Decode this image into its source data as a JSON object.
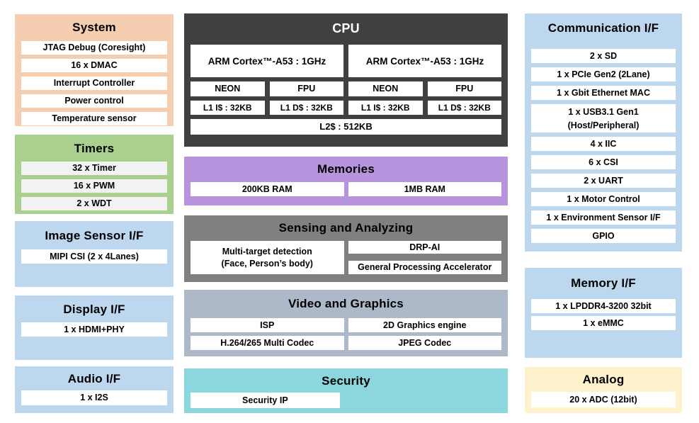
{
  "colors": {
    "system-bg": "#f5cdb0",
    "timers-bg": "#a9d08e",
    "panel-blue-bg": "#bdd7ee",
    "cpu-bg": "#404040",
    "memories-bg": "#b794dd",
    "sensing-bg": "#808080",
    "video-bg": "#adb9c9",
    "security-bg": "#8cd6de",
    "analog-bg": "#fdf2cc",
    "cell-bg": "#ffffff",
    "timers-cell-bg": "#f2f2f2",
    "text": "#000000",
    "cpu-title-text": "#ffffff"
  },
  "diagram": {
    "system": {
      "title": "System",
      "rows": [
        "JTAG Debug (Coresight)",
        "16 x DMAC",
        "Interrupt Controller",
        "Power control",
        "Temperature sensor"
      ]
    },
    "timers": {
      "title": "Timers",
      "rows": [
        "32 x Timer",
        "16 x PWM",
        "2 x WDT"
      ]
    },
    "image_sensor": {
      "title": "Image Sensor I/F",
      "rows": [
        "MIPI CSI (2 x 4Lanes)"
      ]
    },
    "display": {
      "title": "Display I/F",
      "rows": [
        "1 x HDMI+PHY"
      ]
    },
    "audio": {
      "title": "Audio I/F",
      "rows": [
        "1 x I2S"
      ]
    },
    "cpu": {
      "title": "CPU",
      "cores": [
        "ARM Cortex™-A53  : 1GHz",
        "ARM Cortex™-A53  : 1GHz"
      ],
      "units": [
        "NEON",
        "FPU",
        "NEON",
        "FPU"
      ],
      "l1": [
        "L1 I$ : 32KB",
        "L1 D$ : 32KB",
        "L1 I$ : 32KB",
        "L1 D$ : 32KB"
      ],
      "l2": "L2$ : 512KB"
    },
    "memories": {
      "title": "Memories",
      "cells": [
        "200KB RAM",
        "1MB RAM"
      ]
    },
    "sensing": {
      "title": "Sensing and Analyzing",
      "left_rows": [
        "DRP-AI",
        "General Processing Accelerator"
      ],
      "right_cell": "Multi-target detection\n(Face, Person’s body)"
    },
    "video": {
      "title": "Video and Graphics",
      "cells": [
        "ISP",
        "2D Graphics engine",
        "H.264/265 Multi Codec",
        "JPEG Codec"
      ]
    },
    "security": {
      "title": "Security",
      "rows": [
        "Security IP"
      ]
    },
    "communication": {
      "title": "Communication I/F",
      "rows": [
        "2 x SD",
        "1 x PCIe Gen2 (2Lane)",
        "1 x Gbit Ethernet MAC",
        "1 x USB3.1 Gen1\n(Host/Peripheral)",
        "4 x IIC",
        "6 x CSI",
        "2 x UART",
        "1 x Motor Control",
        "1 x Environment Sensor I/F",
        "GPIO"
      ]
    },
    "memory_if": {
      "title": "Memory I/F",
      "rows": [
        "1 x LPDDR4-3200 32bit",
        "1 x eMMC"
      ]
    },
    "analog": {
      "title": "Analog",
      "rows": [
        "20 x ADC (12bit)"
      ]
    }
  }
}
